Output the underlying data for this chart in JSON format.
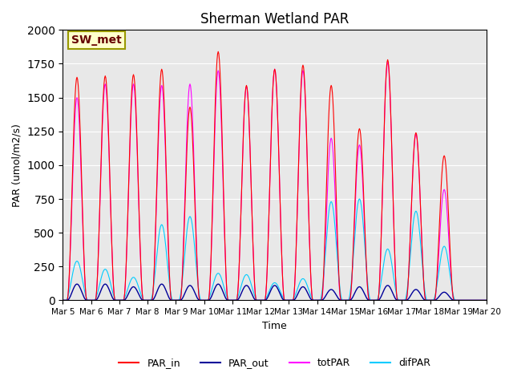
{
  "title": "Sherman Wetland PAR",
  "ylabel": "PAR (umol/m2/s)",
  "xlabel": "Time",
  "ylim": [
    0,
    2000
  ],
  "background_color": "#e8e8e8",
  "annotation_text": "SW_met",
  "annotation_facecolor": "#ffffcc",
  "annotation_edgecolor": "#999900",
  "annotation_textcolor": "#660000",
  "legend_entries": [
    "PAR_in",
    "PAR_out",
    "totPAR",
    "difPAR"
  ],
  "legend_colors": [
    "#ff0000",
    "#000099",
    "#ff00ff",
    "#00ccff"
  ],
  "line_colors": {
    "PAR_in": "#ff0000",
    "PAR_out": "#000099",
    "totPAR": "#ff00ff",
    "difPAR": "#00ccff"
  },
  "xtick_labels": [
    "Mar 5",
    "Mar 6",
    "Mar 7",
    "Mar 8",
    "Mar 9",
    "Mar 10",
    "Mar 11",
    "Mar 12",
    "Mar 13",
    "Mar 14",
    "Mar 15",
    "Mar 16",
    "Mar 17",
    "Mar 18",
    "Mar 19",
    "Mar 20"
  ],
  "peak_PAR_in": [
    1650,
    1660,
    1670,
    1710,
    1430,
    1840,
    1590,
    1710,
    1740,
    1590,
    1270,
    1780,
    1240,
    1070,
    0
  ],
  "peak_totPAR": [
    1500,
    1600,
    1600,
    1590,
    1600,
    1700,
    1580,
    1710,
    1700,
    1200,
    1150,
    1760,
    1230,
    820,
    0
  ],
  "peak_difPAR": [
    290,
    230,
    170,
    560,
    620,
    200,
    190,
    130,
    160,
    730,
    750,
    380,
    660,
    400,
    0
  ],
  "peak_PAR_out": [
    120,
    120,
    100,
    120,
    110,
    120,
    110,
    110,
    100,
    80,
    100,
    110,
    80,
    60,
    0
  ]
}
